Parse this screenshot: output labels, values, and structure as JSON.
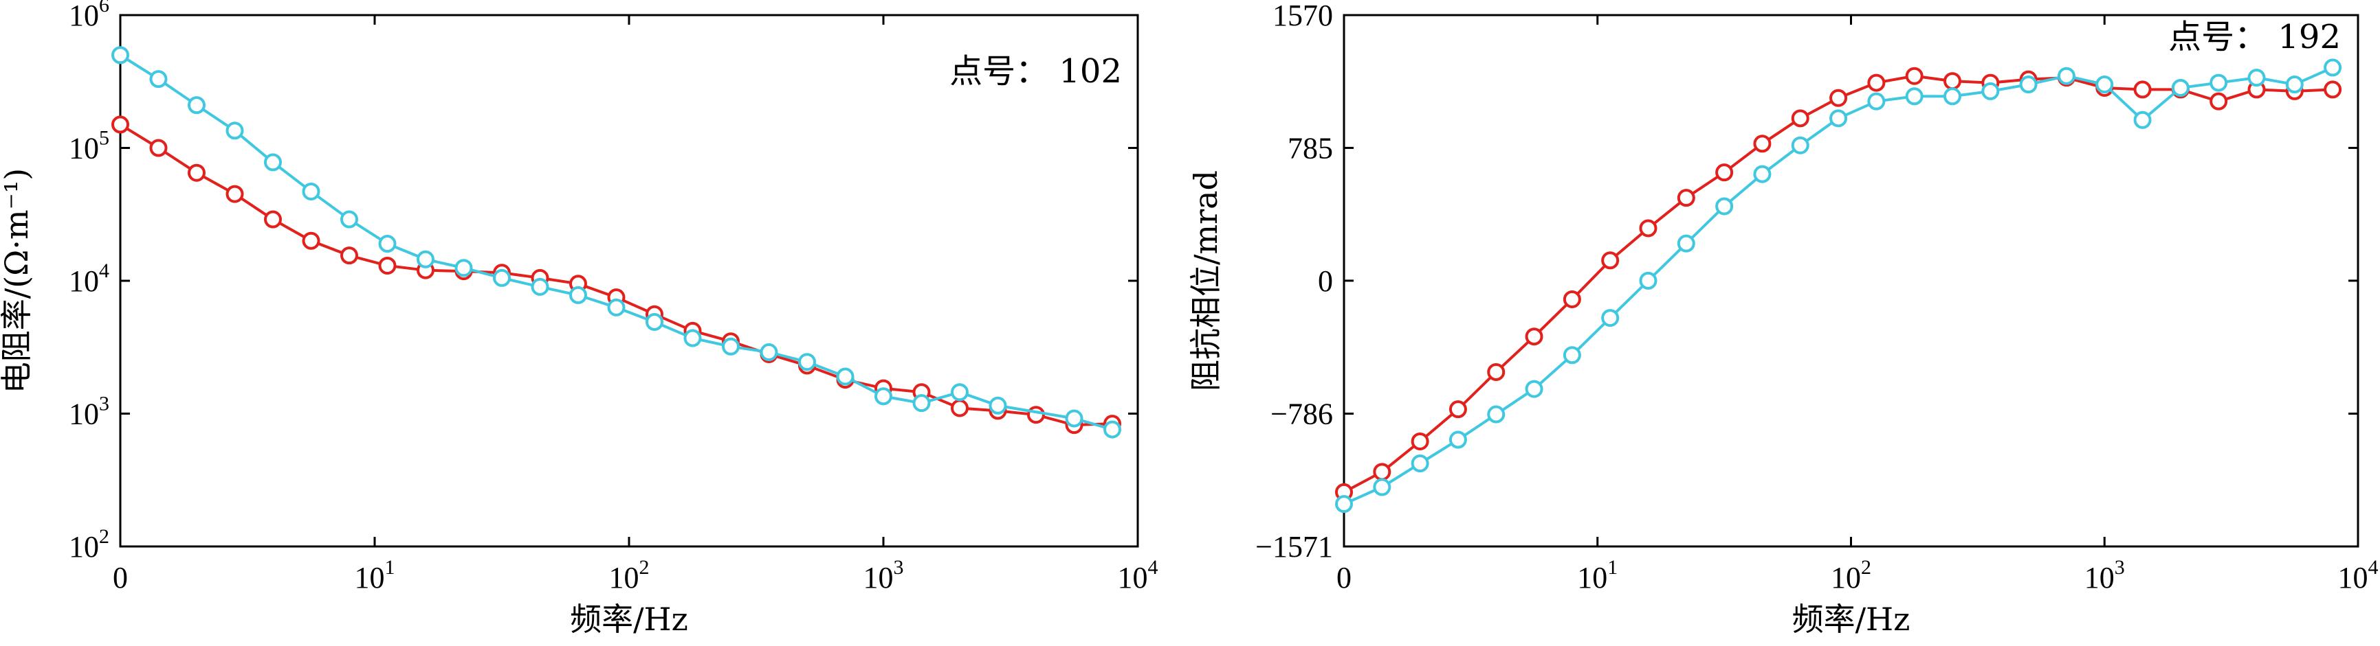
{
  "chart_data": [
    {
      "type": "line",
      "xlabel": "频率/Hz",
      "ylabel": "电阻率/(Ω·m⁻¹)",
      "annotation": "点号： 102",
      "x_scale": "log",
      "y_scale": "log",
      "ylim": [
        100,
        1000000
      ],
      "x_ticks": [
        {
          "base": "0",
          "exp": ""
        },
        {
          "base": "10",
          "exp": "1"
        },
        {
          "base": "10",
          "exp": "2"
        },
        {
          "base": "10",
          "exp": "3"
        },
        {
          "base": "10",
          "exp": "4"
        }
      ],
      "y_ticks": [
        {
          "base": "10",
          "exp": "2",
          "value": 100
        },
        {
          "base": "10",
          "exp": "3",
          "value": 1000
        },
        {
          "base": "10",
          "exp": "4",
          "value": 10000
        },
        {
          "base": "10",
          "exp": "5",
          "value": 100000
        },
        {
          "base": "10",
          "exp": "6",
          "value": 1000000
        }
      ],
      "x_tick_positions": [
        0,
        1,
        2,
        3,
        4
      ],
      "x_positions": [
        0,
        0.15,
        0.3,
        0.45,
        0.6,
        0.75,
        0.9,
        1.05,
        1.2,
        1.35,
        1.5,
        1.65,
        1.8,
        1.95,
        2.1,
        2.25,
        2.4,
        2.55,
        2.7,
        2.85,
        3.0,
        3.15,
        3.3,
        3.45,
        3.6,
        3.75,
        3.9
      ],
      "series": [
        {
          "color": "#e3211c",
          "values": [
            150000,
            100000,
            65000,
            45000,
            29000,
            20000,
            15500,
            13000,
            12000,
            11800,
            11500,
            10500,
            9500,
            7500,
            5600,
            4200,
            3500,
            2800,
            2300,
            1800,
            1550,
            1450,
            1100,
            1050,
            980,
            820,
            840
          ]
        },
        {
          "color": "#40c8e0",
          "values": [
            500000,
            330000,
            210000,
            135000,
            78000,
            47000,
            29000,
            19000,
            14500,
            12500,
            10500,
            9000,
            7800,
            6300,
            4900,
            3700,
            3200,
            2900,
            2450,
            1900,
            1350,
            1200,
            1450,
            1150,
            null,
            920,
            760
          ]
        }
      ]
    },
    {
      "type": "line",
      "xlabel": "频率/Hz",
      "ylabel": "阻抗相位/mrad",
      "annotation": "点号： 192",
      "x_scale": "log",
      "ylim": [
        -1571,
        1570
      ],
      "x_ticks": [
        {
          "base": "0",
          "exp": ""
        },
        {
          "base": "10",
          "exp": "1"
        },
        {
          "base": "10",
          "exp": "2"
        },
        {
          "base": "10",
          "exp": "3"
        },
        {
          "base": "10",
          "exp": "4"
        }
      ],
      "y_ticks": [
        {
          "label": "1570",
          "value": 1570
        },
        {
          "label": "785",
          "value": 785
        },
        {
          "label": "0",
          "value": 0
        },
        {
          "label": "−786",
          "value": -786
        },
        {
          "label": "−1571",
          "value": -1571
        }
      ],
      "x_tick_positions": [
        0,
        1,
        2,
        3,
        4
      ],
      "x_positions": [
        0,
        0.15,
        0.3,
        0.45,
        0.6,
        0.75,
        0.9,
        1.05,
        1.2,
        1.35,
        1.5,
        1.65,
        1.8,
        1.95,
        2.1,
        2.25,
        2.4,
        2.55,
        2.7,
        2.85,
        3.0,
        3.15,
        3.3,
        3.45,
        3.6,
        3.75,
        3.9
      ],
      "series": [
        {
          "color": "#e3211c",
          "values": [
            -1250,
            -1130,
            -950,
            -760,
            -540,
            -330,
            -110,
            120,
            310,
            490,
            640,
            810,
            960,
            1080,
            1170,
            1210,
            1180,
            1170,
            1190,
            1200,
            1140,
            1130,
            1130,
            1060,
            1130,
            1120,
            1130
          ]
        },
        {
          "color": "#40c8e0",
          "values": [
            -1320,
            -1220,
            -1080,
            -940,
            -790,
            -640,
            -440,
            -220,
            0,
            220,
            440,
            630,
            800,
            960,
            1060,
            1090,
            1090,
            1120,
            1160,
            1210,
            1160,
            950,
            1140,
            1170,
            1200,
            1160,
            1260
          ]
        }
      ]
    }
  ]
}
